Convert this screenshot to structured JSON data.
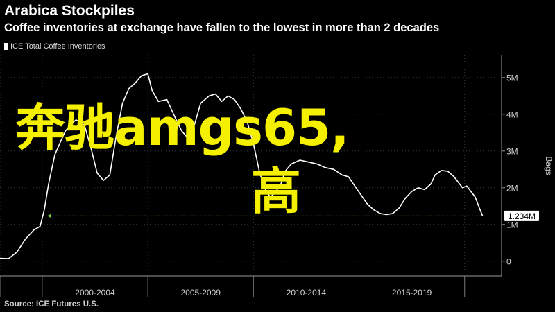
{
  "header": {
    "title": "Arabica Stockpiles",
    "subtitle": "Coffee inventories at exchange have fallen to the lowest in more than 2 decades"
  },
  "source": "Source: ICE Futures U.S.",
  "overlay": {
    "line1": "奔驰amgs65,",
    "line2": "高",
    "color": "#f5f000"
  },
  "chart_data": {
    "type": "line",
    "legend": "ICE Total Coffee Inventories",
    "ylabel": "Bags",
    "ylim": [
      -0.4,
      5.6
    ],
    "y_ticks": [
      {
        "v": 0,
        "label": "0"
      },
      {
        "v": 1,
        "label": "1M"
      },
      {
        "v": 2,
        "label": "2M"
      },
      {
        "v": 3,
        "label": "3M"
      },
      {
        "v": 4,
        "label": "4M"
      },
      {
        "v": 5,
        "label": "5M"
      }
    ],
    "x_categories": [
      "2000-2004",
      "2005-2009",
      "2010-2014",
      "2015-2019"
    ],
    "x_boundaries": [
      1998.0,
      2000.0,
      2005.0,
      2010.0,
      2015.0,
      2020.0
    ],
    "xlim": [
      1998.0,
      2021.75
    ],
    "last_value_label": "1.234M",
    "last_value": 1.234,
    "line_color": "#ffffff",
    "reference_line_color": "#6ecf3a",
    "series": [
      {
        "values": [
          [
            1998.0,
            0.08
          ],
          [
            1998.4,
            0.07
          ],
          [
            1998.8,
            0.25
          ],
          [
            1999.2,
            0.6
          ],
          [
            1999.6,
            0.85
          ],
          [
            1999.9,
            0.95
          ],
          [
            2000.1,
            1.4
          ],
          [
            2000.3,
            2.1
          ],
          [
            2000.6,
            2.9
          ],
          [
            2000.9,
            3.3
          ],
          [
            2001.1,
            3.55
          ],
          [
            2001.4,
            3.75
          ],
          [
            2001.6,
            3.85
          ],
          [
            2002.0,
            3.7
          ],
          [
            2002.3,
            3.1
          ],
          [
            2002.6,
            2.4
          ],
          [
            2002.9,
            2.2
          ],
          [
            2003.2,
            2.35
          ],
          [
            2003.5,
            3.4
          ],
          [
            2003.8,
            4.3
          ],
          [
            2004.1,
            4.7
          ],
          [
            2004.4,
            4.85
          ],
          [
            2004.7,
            5.05
          ],
          [
            2005.0,
            5.1
          ],
          [
            2005.2,
            4.65
          ],
          [
            2005.5,
            4.35
          ],
          [
            2005.9,
            4.4
          ],
          [
            2006.3,
            3.9
          ],
          [
            2006.6,
            3.55
          ],
          [
            2006.9,
            3.35
          ],
          [
            2007.2,
            3.7
          ],
          [
            2007.5,
            4.3
          ],
          [
            2007.9,
            4.5
          ],
          [
            2008.2,
            4.55
          ],
          [
            2008.5,
            4.35
          ],
          [
            2008.8,
            4.5
          ],
          [
            2009.1,
            4.4
          ],
          [
            2009.4,
            4.15
          ],
          [
            2009.7,
            3.8
          ],
          [
            2010.0,
            3.2
          ],
          [
            2010.3,
            2.4
          ],
          [
            2010.6,
            1.9
          ],
          [
            2010.8,
            1.75
          ],
          [
            2011.0,
            1.85
          ],
          [
            2011.3,
            2.1
          ],
          [
            2011.5,
            2.45
          ],
          [
            2011.8,
            2.65
          ],
          [
            2012.2,
            2.75
          ],
          [
            2012.6,
            2.7
          ],
          [
            2013.0,
            2.65
          ],
          [
            2013.4,
            2.55
          ],
          [
            2013.8,
            2.5
          ],
          [
            2014.2,
            2.35
          ],
          [
            2014.5,
            2.3
          ],
          [
            2014.8,
            2.05
          ],
          [
            2015.1,
            1.8
          ],
          [
            2015.4,
            1.55
          ],
          [
            2015.7,
            1.4
          ],
          [
            2016.0,
            1.3
          ],
          [
            2016.3,
            1.27
          ],
          [
            2016.6,
            1.3
          ],
          [
            2016.9,
            1.45
          ],
          [
            2017.2,
            1.72
          ],
          [
            2017.5,
            1.9
          ],
          [
            2017.8,
            2.0
          ],
          [
            2018.1,
            1.95
          ],
          [
            2018.4,
            2.1
          ],
          [
            2018.6,
            2.35
          ],
          [
            2018.9,
            2.47
          ],
          [
            2019.2,
            2.45
          ],
          [
            2019.5,
            2.3
          ],
          [
            2019.7,
            2.15
          ],
          [
            2019.9,
            2.0
          ],
          [
            2020.1,
            2.05
          ],
          [
            2020.3,
            1.9
          ],
          [
            2020.5,
            1.75
          ],
          [
            2020.7,
            1.45
          ],
          [
            2020.85,
            1.234
          ]
        ]
      }
    ]
  }
}
